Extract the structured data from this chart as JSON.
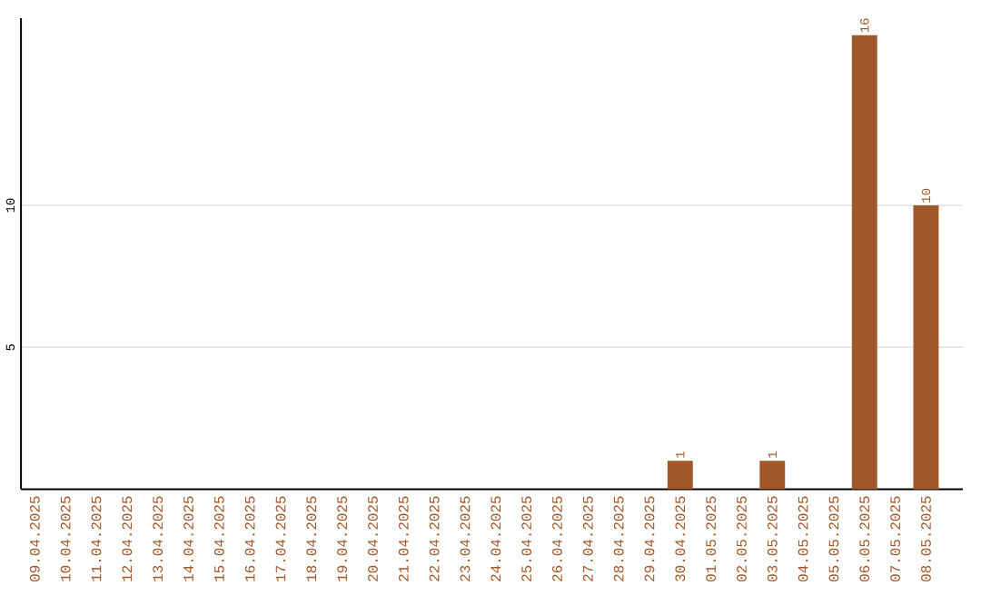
{
  "chart_data": {
    "type": "bar",
    "categories": [
      "09.04.2025",
      "10.04.2025",
      "11.04.2025",
      "12.04.2025",
      "13.04.2025",
      "14.04.2025",
      "15.04.2025",
      "16.04.2025",
      "17.04.2025",
      "18.04.2025",
      "19.04.2025",
      "20.04.2025",
      "21.04.2025",
      "22.04.2025",
      "23.04.2025",
      "24.04.2025",
      "25.04.2025",
      "26.04.2025",
      "27.04.2025",
      "28.04.2025",
      "29.04.2025",
      "30.04.2025",
      "01.05.2025",
      "02.05.2025",
      "03.05.2025",
      "04.05.2025",
      "05.05.2025",
      "06.05.2025",
      "07.05.2025",
      "08.05.2025"
    ],
    "values": [
      0,
      0,
      0,
      0,
      0,
      0,
      0,
      0,
      0,
      0,
      0,
      0,
      0,
      0,
      0,
      0,
      0,
      0,
      0,
      0,
      0,
      1,
      0,
      0,
      1,
      0,
      0,
      16,
      0,
      10
    ],
    "value_labels": [
      null,
      null,
      null,
      null,
      null,
      null,
      null,
      null,
      null,
      null,
      null,
      null,
      null,
      null,
      null,
      null,
      null,
      null,
      null,
      null,
      null,
      "1",
      null,
      null,
      "1",
      null,
      null,
      "16",
      null,
      "10"
    ],
    "color": "#a0572a",
    "ylim": [
      0,
      16.6
    ],
    "yticks": [
      5,
      10
    ],
    "grid": "y"
  }
}
